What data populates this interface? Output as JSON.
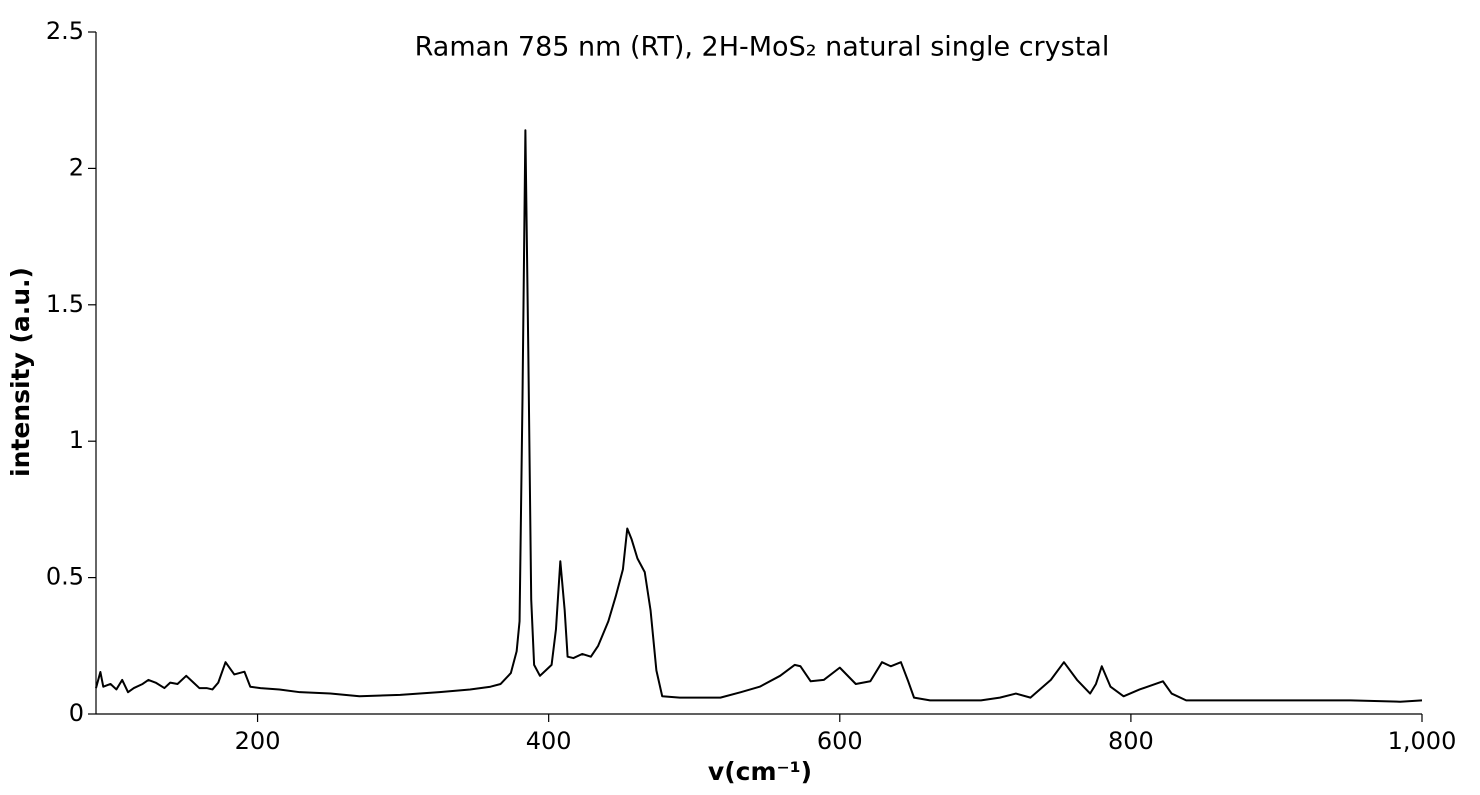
{
  "chart_data": {
    "type": "line",
    "title": "Raman 785 nm (RT), 2H-MoS₂ natural single crystal",
    "x_label": "v(cm⁻¹)",
    "y_label": "intensity (a.u.)",
    "color": "#000000",
    "xlim": [
      89,
      1000
    ],
    "ylim": [
      0,
      2.5
    ],
    "xticks": [
      200,
      400,
      600,
      800,
      {
        "value": 1000,
        "label": "1,000"
      }
    ],
    "yticks": [
      0,
      0.5,
      1,
      1.5,
      2,
      2.5
    ],
    "x": [
      89,
      92,
      94,
      99,
      103,
      107,
      111,
      115,
      121,
      125,
      130,
      136,
      140,
      145,
      151,
      156,
      160,
      165,
      169,
      173,
      178,
      184,
      191,
      195,
      202,
      215,
      229,
      250,
      270,
      298,
      325,
      346,
      360,
      367,
      374,
      378,
      380,
      382,
      384,
      386,
      388,
      390,
      394,
      398,
      402,
      405,
      408,
      411,
      413,
      417,
      423,
      429,
      434,
      441,
      446,
      451,
      454,
      457,
      461,
      466,
      470,
      474,
      478,
      490,
      518,
      532,
      545,
      559,
      569,
      573,
      580,
      589,
      600,
      611,
      621,
      629,
      635,
      642,
      647,
      651,
      662,
      697,
      710,
      721,
      731,
      745,
      754,
      763,
      772,
      776,
      780,
      786,
      795,
      806,
      822,
      828,
      838,
      882,
      951,
      985,
      1000
    ],
    "values": [
      0.095,
      0.154,
      0.1,
      0.11,
      0.09,
      0.125,
      0.08,
      0.095,
      0.11,
      0.125,
      0.115,
      0.095,
      0.115,
      0.11,
      0.14,
      0.115,
      0.095,
      0.095,
      0.09,
      0.115,
      0.19,
      0.145,
      0.155,
      0.1,
      0.095,
      0.09,
      0.08,
      0.075,
      0.065,
      0.07,
      0.08,
      0.09,
      0.1,
      0.11,
      0.15,
      0.23,
      0.34,
      1.15,
      2.14,
      1.33,
      0.42,
      0.18,
      0.14,
      0.16,
      0.18,
      0.31,
      0.56,
      0.38,
      0.21,
      0.205,
      0.22,
      0.21,
      0.25,
      0.34,
      0.43,
      0.53,
      0.68,
      0.64,
      0.57,
      0.52,
      0.38,
      0.16,
      0.065,
      0.06,
      0.06,
      0.08,
      0.1,
      0.14,
      0.18,
      0.175,
      0.12,
      0.125,
      0.17,
      0.11,
      0.12,
      0.19,
      0.175,
      0.19,
      0.12,
      0.06,
      0.05,
      0.05,
      0.06,
      0.075,
      0.06,
      0.125,
      0.19,
      0.125,
      0.075,
      0.11,
      0.175,
      0.1,
      0.065,
      0.09,
      0.12,
      0.075,
      0.05,
      0.05,
      0.05,
      0.045,
      0.05
    ]
  }
}
